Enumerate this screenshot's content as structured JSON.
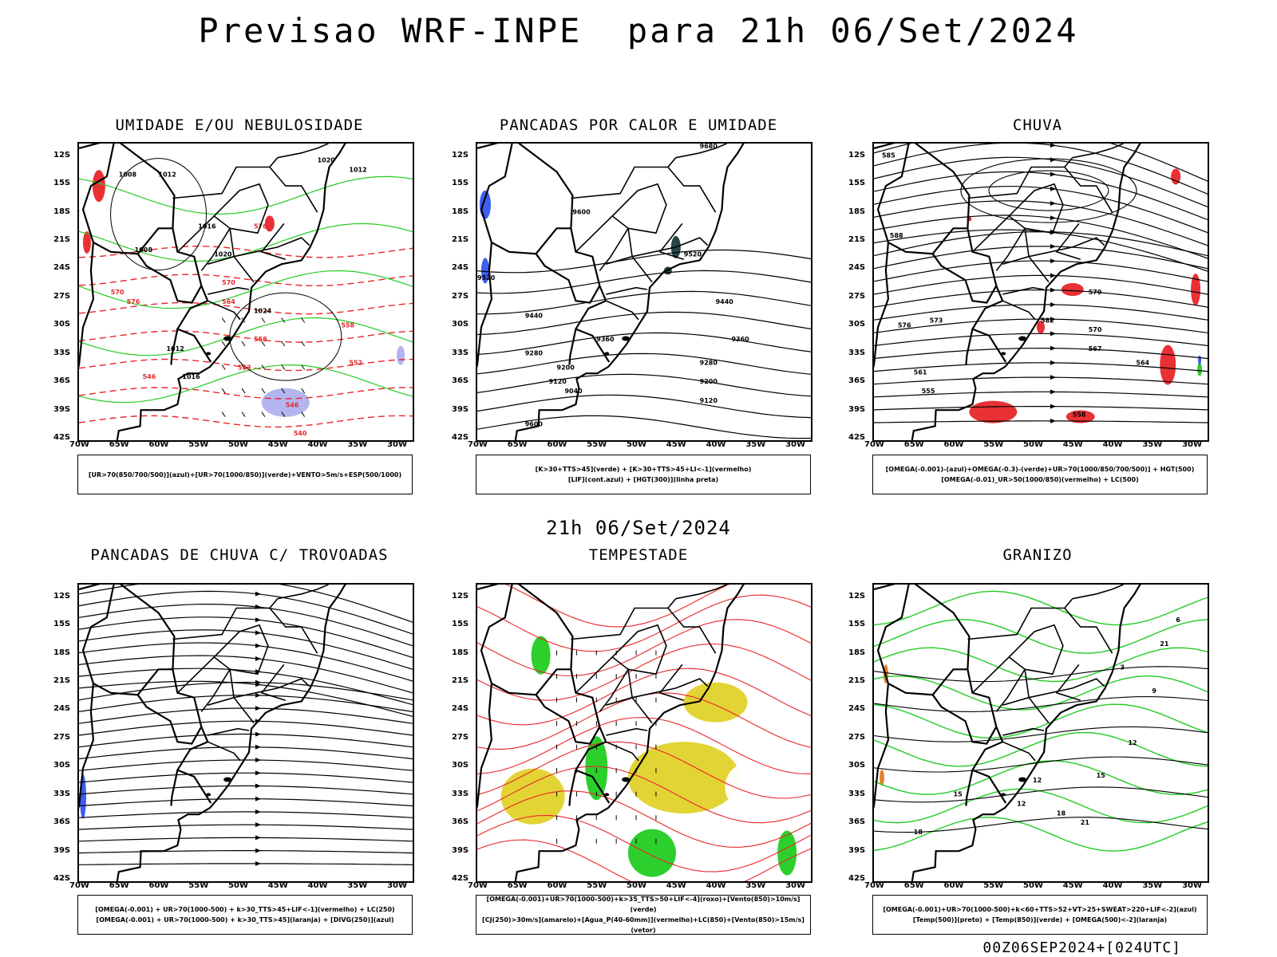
{
  "main_title": "Previsao WRF-INPE  para 21h 06/Set/2024",
  "mid_title": "21h 06/Set/2024",
  "footer": "00Z06SEP2024+[024UTC]",
  "axes": {
    "lat_labels": [
      "12S",
      "15S",
      "18S",
      "21S",
      "24S",
      "27S",
      "30S",
      "33S",
      "36S",
      "39S",
      "42S"
    ],
    "lon_labels": [
      "70W",
      "65W",
      "60W",
      "55W",
      "50W",
      "45W",
      "40W",
      "35W",
      "30W"
    ]
  },
  "colors": {
    "red": "#e8262a",
    "green": "#22cc22",
    "blue": "#3355ee",
    "yellow": "#e2d22a",
    "orange": "#e07a20",
    "lavender": "#b0b0ee",
    "dark_teal": "#1a3a3a"
  },
  "panels": [
    {
      "title": "UMIDADE E/OU NEBULOSIDADE",
      "legend_lines": [
        "[UR>70(850/700/500)](azul)+[UR>70(1000/850)](verde)+VENTO>5m/s+ESP(500/1000)"
      ],
      "contour_labels": [
        "1008",
        "1012",
        "1016",
        "1020",
        "1024",
        "1012",
        "1020",
        "1008",
        "1012",
        "1016"
      ],
      "red_labels": [
        "576",
        "570",
        "564",
        "558",
        "552",
        "546",
        "540",
        "570",
        "576",
        "558",
        "552",
        "546"
      ]
    },
    {
      "title": "PANCADAS POR CALOR E UMIDADE",
      "legend_lines": [
        "[K>30+TTS>45](verde) + [K>30+TTS>45+LI<-1](vermelho)",
        "[LIF](cont.azul) + [HGT(300)](linha preta)"
      ],
      "contour_labels": [
        "9680",
        "9600",
        "9520",
        "9440",
        "9360",
        "9280",
        "9200",
        "9120",
        "9040",
        "9600",
        "9520",
        "9440",
        "9360",
        "9280",
        "9200",
        "9120"
      ]
    },
    {
      "title": "CHUVA",
      "legend_lines": [
        "[OMEGA(-0.001)-(azul)+OMEGA(-0.3)-(verde)+UR>70(1000/850/700/500)] + HGT(500)",
        "[OMEGA(-0.01)_UR>50(1000/850)(vermelho) + LC(500)"
      ],
      "contour_labels": [
        "585",
        "588",
        "582",
        "579",
        "576",
        "573",
        "570",
        "567",
        "564",
        "561",
        "558",
        "555"
      ]
    },
    {
      "title": "PANCADAS DE CHUVA C/ TROVOADAS",
      "legend_lines": [
        "[OMEGA(-0.001) + UR>70(1000-500) + k>30_TTS>45+LIF<-1](vermelho) + LC(250)",
        "[OMEGA(-0.001) + UR>70(1000-500) + k>30_TTS>45](laranja) + [DIVG(250)](azul)"
      ]
    },
    {
      "title": "TEMPESTADE",
      "legend_lines": [
        "[OMEGA(-0.001)+UR>70(1000-500)+k>35_TTS>50+LIF<-4](roxo)+[Vento(850)>10m/s](verde)",
        "[CJ(250)>30m/s](amarelo)+[Agua_P(40-60mm)](vermelho)+LC(850)+[Vento(850)>15m/s](vetor)"
      ]
    },
    {
      "title": "GRANIZO",
      "legend_lines": [
        "[OMEGA(-0.001)+UR>70(1000-500)+k<60+TTS>52+VT>25+SWEAT>220+LIF<-2](azul)",
        "[Temp(500)](preto) + [Temp(850)](verde) + [OMEGA(500)<-2](laranja)"
      ],
      "contour_labels": [
        "3",
        "6",
        "9",
        "12",
        "15",
        "18",
        "21",
        "12",
        "15",
        "18",
        "21",
        "12"
      ]
    }
  ]
}
